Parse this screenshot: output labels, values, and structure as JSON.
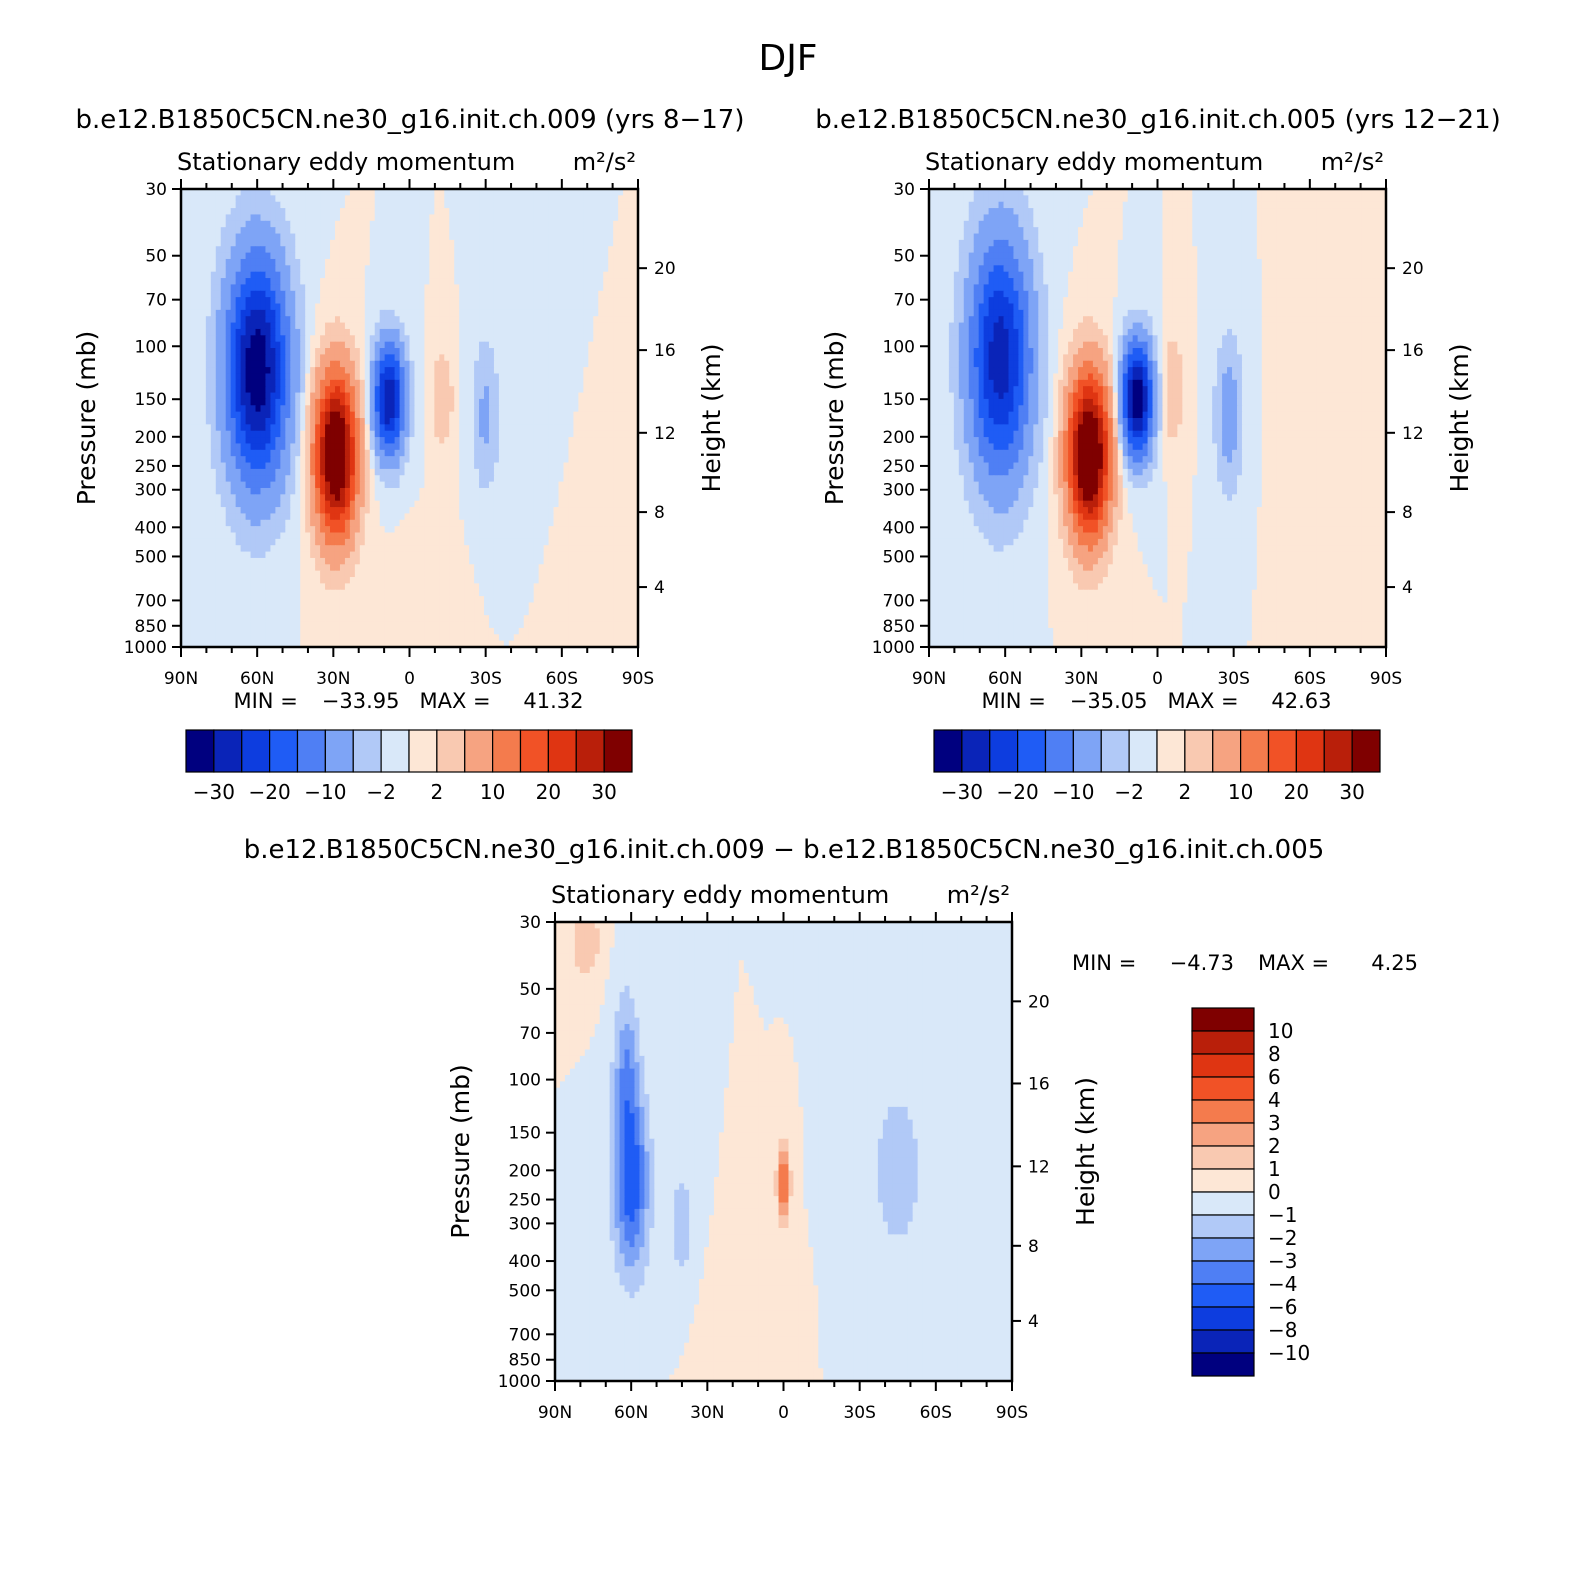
{
  "figure": {
    "title": "DJF",
    "diff_title": "b.e12.B1850C5CN.ne30_g16.init.ch.009 − b.e12.B1850C5CN.ne30_g16.init.ch.005"
  },
  "chart_data": [
    {
      "type": "heatmap",
      "case_title": "b.e12.B1850C5CN.ne30_g16.init.ch.009 (yrs 8−17)",
      "subtitle_left": "Stationary eddy momentum",
      "subtitle_right": "m²/s²",
      "xlabel": "",
      "ylabel": "Pressure (mb)",
      "ylabel_right": "Height (km)",
      "x_ticks": [
        "90N",
        "60N",
        "30N",
        "0",
        "30S",
        "60S",
        "90S"
      ],
      "y_ticks": [
        30,
        50,
        70,
        100,
        150,
        200,
        250,
        300,
        400,
        500,
        700,
        850,
        1000
      ],
      "y_scale": "log",
      "y_right_ticks": [
        20,
        16,
        12,
        8,
        4
      ],
      "min_label": "MIN =",
      "min_value": "−33.95",
      "max_label": "MAX =",
      "max_value": "41.32",
      "colorbar": {
        "orientation": "horizontal",
        "levels": [
          -30,
          -25,
          -20,
          -15,
          -10,
          -5,
          -2,
          0,
          2,
          5,
          10,
          15,
          20,
          25,
          30
        ],
        "labels": [
          "−30",
          "−20",
          "−10",
          "−2",
          "2",
          "10",
          "20",
          "30"
        ]
      },
      "blobs": [
        {
          "lat": 60,
          "p": 120,
          "amp": -34,
          "wlat": 12,
          "wlp": 0.85
        },
        {
          "lat": 29,
          "p": 230,
          "amp": 41,
          "wlat": 8,
          "wlp": 0.6
        },
        {
          "lat": 8,
          "p": 150,
          "amp": -30,
          "wlat": 6,
          "wlp": 0.42
        },
        {
          "lat": -13,
          "p": 150,
          "amp": 5,
          "wlat": 4,
          "wlp": 0.35
        },
        {
          "lat": -30,
          "p": 170,
          "amp": -6,
          "wlat": 5,
          "wlp": 0.55
        },
        {
          "lat": -5,
          "p": 700,
          "amp": 2,
          "wlat": 10,
          "wlp": 0.4
        }
      ]
    },
    {
      "type": "heatmap",
      "case_title": "b.e12.B1850C5CN.ne30_g16.init.ch.005 (yrs 12−21)",
      "subtitle_left": "Stationary eddy momentum",
      "subtitle_right": "m²/s²",
      "xlabel": "",
      "ylabel": "Pressure (mb)",
      "ylabel_right": "Height (km)",
      "x_ticks": [
        "90N",
        "60N",
        "30N",
        "0",
        "30S",
        "60S",
        "90S"
      ],
      "y_ticks": [
        30,
        50,
        70,
        100,
        150,
        200,
        250,
        300,
        400,
        500,
        700,
        850,
        1000
      ],
      "y_scale": "log",
      "y_right_ticks": [
        20,
        16,
        12,
        8,
        4
      ],
      "min_label": "MIN =",
      "min_value": "−35.05",
      "max_label": "MAX =",
      "max_value": "42.63",
      "colorbar": {
        "orientation": "horizontal",
        "levels": [
          -30,
          -25,
          -20,
          -15,
          -10,
          -5,
          -2,
          0,
          2,
          5,
          10,
          15,
          20,
          25,
          30
        ],
        "labels": [
          "−30",
          "−20",
          "−10",
          "−2",
          "2",
          "10",
          "20",
          "30"
        ]
      },
      "blobs": [
        {
          "lat": 62,
          "p": 110,
          "amp": -28,
          "wlat": 12,
          "wlp": 0.9
        },
        {
          "lat": 27,
          "p": 230,
          "amp": 42,
          "wlat": 8,
          "wlp": 0.6
        },
        {
          "lat": 8,
          "p": 150,
          "amp": -35,
          "wlat": 6,
          "wlp": 0.42
        },
        {
          "lat": -6,
          "p": 140,
          "amp": 5,
          "wlat": 4,
          "wlp": 0.4
        },
        {
          "lat": -28,
          "p": 170,
          "amp": -8,
          "wlat": 5,
          "wlp": 0.55
        },
        {
          "lat": -55,
          "p": 300,
          "amp": 2,
          "wlat": 6,
          "wlp": 1.0
        }
      ]
    },
    {
      "type": "heatmap",
      "case_title": "",
      "subtitle_left": "Stationary eddy momentum",
      "subtitle_right": "m²/s²",
      "xlabel": "",
      "ylabel": "Pressure (mb)",
      "ylabel_right": "Height (km)",
      "x_ticks": [
        "90N",
        "60N",
        "30N",
        "0",
        "30S",
        "60S",
        "90S"
      ],
      "y_ticks": [
        30,
        50,
        70,
        100,
        150,
        200,
        250,
        300,
        400,
        500,
        700,
        850,
        1000
      ],
      "y_scale": "log",
      "y_right_ticks": [
        20,
        16,
        12,
        8,
        4
      ],
      "min_label": "MIN =",
      "min_value": "−4.73",
      "max_label": "MAX =",
      "max_value": "4.25",
      "colorbar": {
        "orientation": "vertical",
        "levels": [
          10,
          8,
          6,
          4,
          3,
          2,
          1,
          0,
          -1,
          -2,
          -3,
          -4,
          -6,
          -8,
          -10
        ],
        "labels": [
          "10",
          "8",
          "6",
          "4",
          "3",
          "2",
          "1",
          "0",
          "−1",
          "−2",
          "−3",
          "−4",
          "−6",
          "−8",
          "−10"
        ]
      },
      "blobs": [
        {
          "lat": 60,
          "p": 220,
          "amp": -4.7,
          "wlat": 7,
          "wlp": 0.7
        },
        {
          "lat": 62,
          "p": 90,
          "amp": -2.5,
          "wlat": 5,
          "wlp": 0.6
        },
        {
          "lat": 40,
          "p": 300,
          "amp": -1.5,
          "wlat": 6,
          "wlp": 0.5
        },
        {
          "lat": 0,
          "p": 220,
          "amp": 4.25,
          "wlat": 2.5,
          "wlp": 0.3
        },
        {
          "lat": -45,
          "p": 200,
          "amp": -1.5,
          "wlat": 12,
          "wlp": 0.8
        },
        {
          "lat": 78,
          "p": 35,
          "amp": 2,
          "wlat": 6,
          "wlp": 0.3
        },
        {
          "lat": 20,
          "p": 600,
          "amp": 0.6,
          "wlat": 12,
          "wlp": 0.5
        }
      ]
    }
  ],
  "colors": {
    "diverging": [
      "#00007f",
      "#0a24b8",
      "#0d3ddf",
      "#1f5cf5",
      "#4f7ff4",
      "#7ea4f6",
      "#b1c9f7",
      "#d9e8f9",
      "#fde7d6",
      "#f9c9b1",
      "#f6a381",
      "#f47b4d",
      "#f15226",
      "#df3512",
      "#b91f0a",
      "#7f0000"
    ]
  }
}
